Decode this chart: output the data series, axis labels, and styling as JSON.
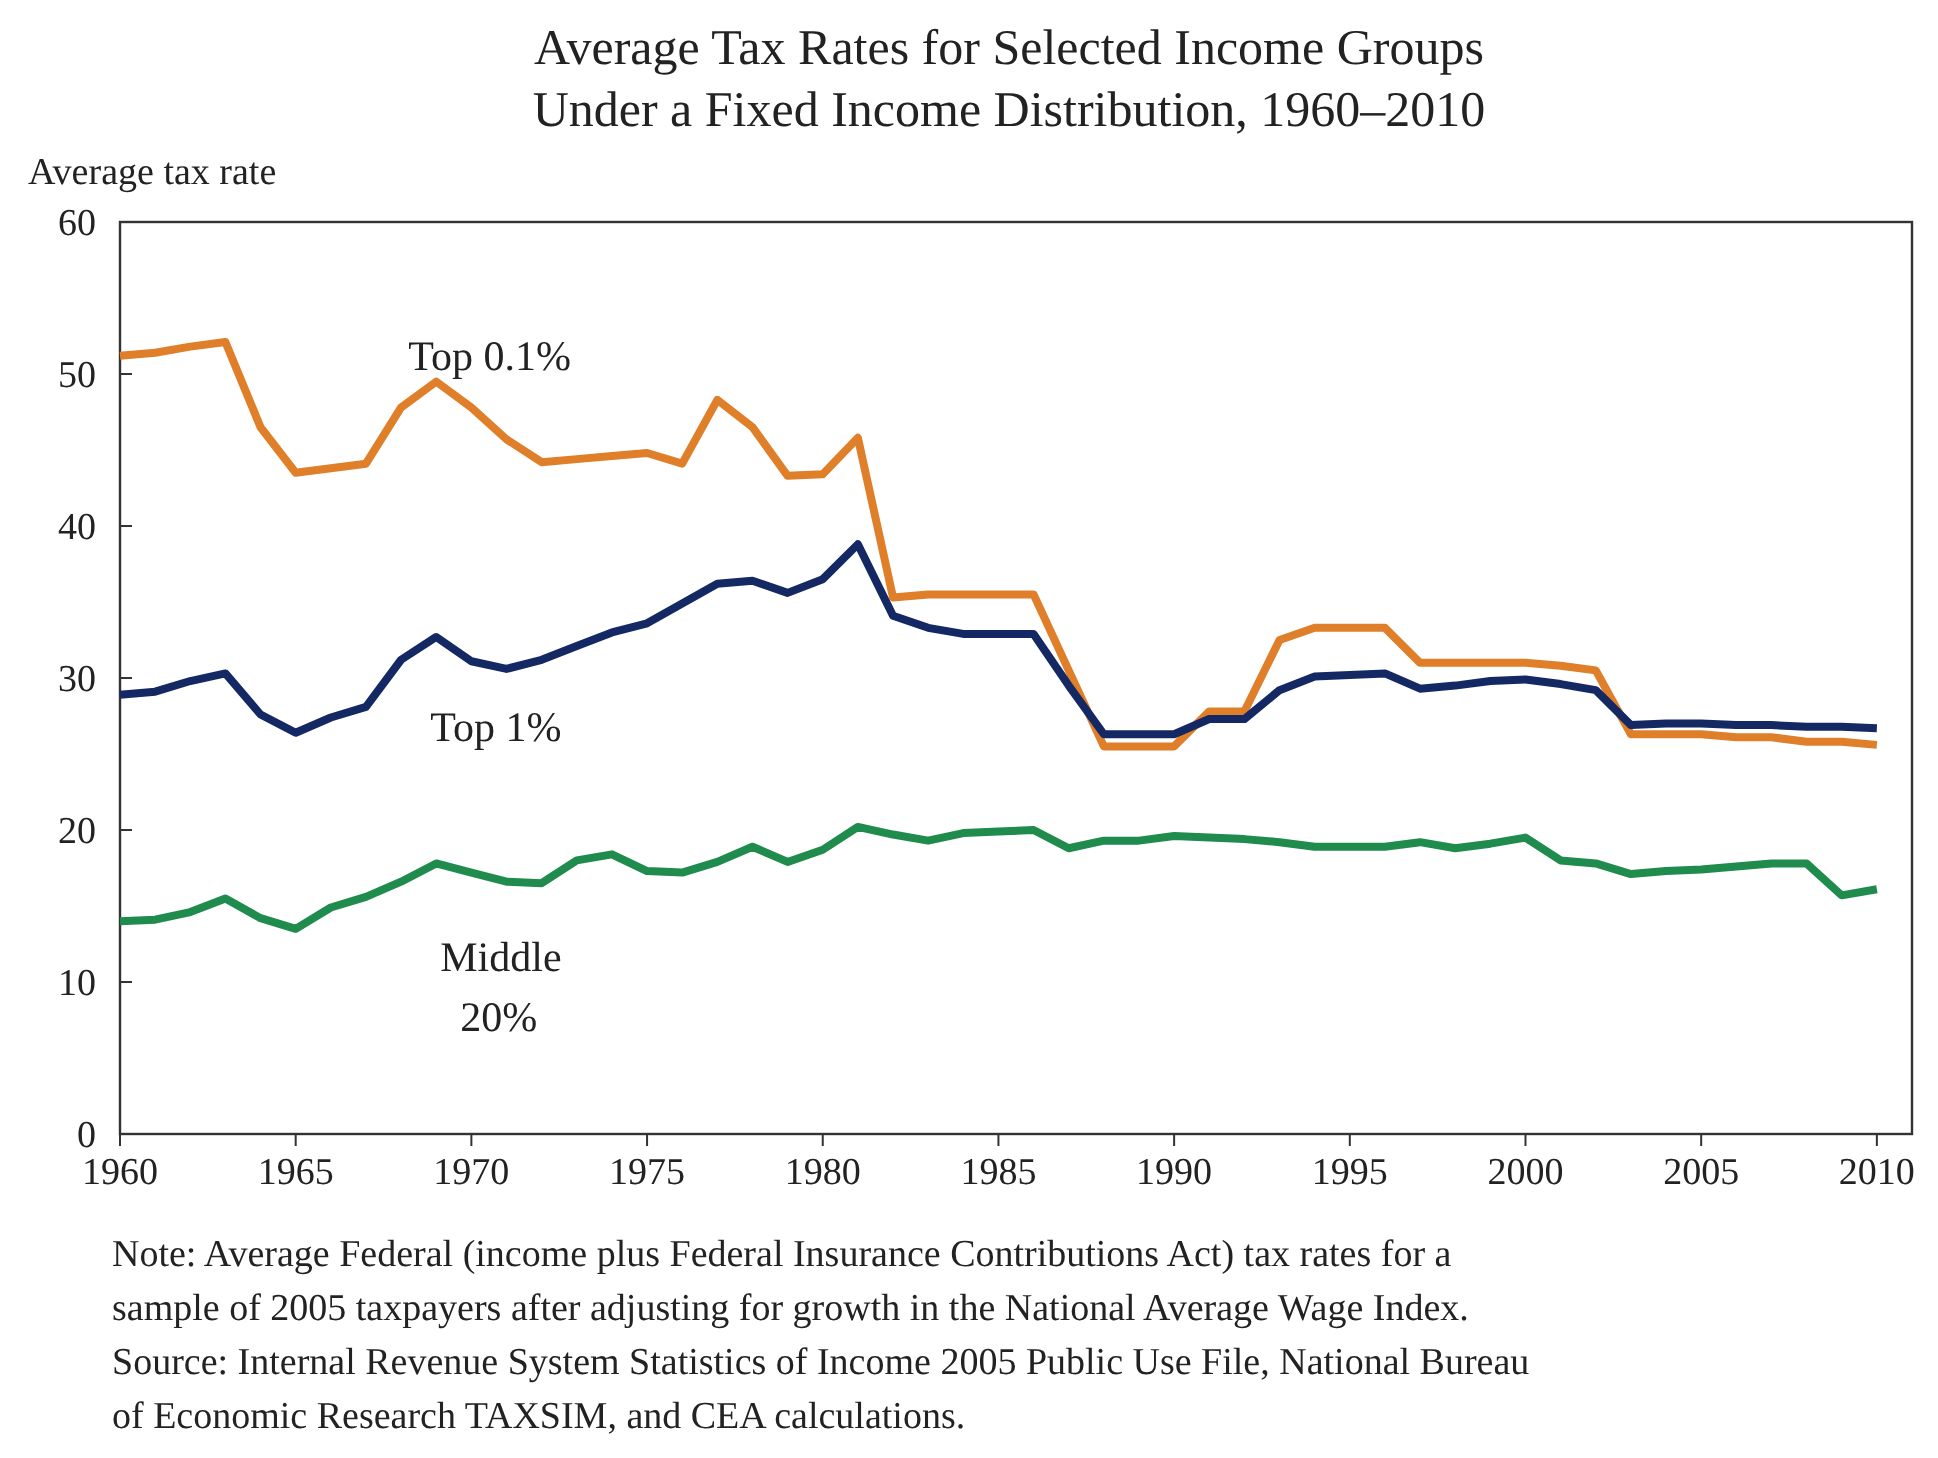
{
  "chart_data": {
    "type": "line",
    "title": "Average Tax Rates for Selected Income Groups\nUnder a Fixed Income Distribution, 1960–2010",
    "ylabel": "Average tax rate",
    "x": [
      1960,
      1961,
      1962,
      1963,
      1964,
      1965,
      1966,
      1967,
      1968,
      1969,
      1970,
      1971,
      1972,
      1973,
      1974,
      1975,
      1976,
      1977,
      1978,
      1979,
      1980,
      1981,
      1982,
      1983,
      1984,
      1985,
      1986,
      1987,
      1988,
      1989,
      1990,
      1991,
      1992,
      1993,
      1994,
      1995,
      1996,
      1997,
      1998,
      1999,
      2000,
      2001,
      2002,
      2003,
      2004,
      2005,
      2006,
      2007,
      2008,
      2009,
      2010
    ],
    "series": [
      {
        "name": "Top 0.1%",
        "color": "#e07f2a",
        "values": [
          51.2,
          51.4,
          51.8,
          52.1,
          46.5,
          43.5,
          43.8,
          44.1,
          47.8,
          49.5,
          47.8,
          45.7,
          44.2,
          44.4,
          44.6,
          44.8,
          44.1,
          48.3,
          46.5,
          43.3,
          43.4,
          45.8,
          35.3,
          35.5,
          35.5,
          35.5,
          35.5,
          30.5,
          25.5,
          25.5,
          25.5,
          27.8,
          27.8,
          32.5,
          33.3,
          33.3,
          33.3,
          31.0,
          31.0,
          31.0,
          31.0,
          30.8,
          30.5,
          26.3,
          26.3,
          26.3,
          26.1,
          26.1,
          25.8,
          25.8,
          25.6
        ]
      },
      {
        "name": "Top 1%",
        "color": "#142864",
        "values": [
          28.9,
          29.1,
          29.8,
          30.3,
          27.6,
          26.4,
          27.4,
          28.1,
          31.2,
          32.7,
          31.1,
          30.6,
          31.2,
          32.1,
          33.0,
          33.6,
          34.9,
          36.2,
          36.4,
          35.6,
          36.5,
          38.8,
          34.1,
          33.3,
          32.9,
          32.9,
          32.9,
          29.5,
          26.3,
          26.3,
          26.3,
          27.3,
          27.3,
          29.2,
          30.1,
          30.2,
          30.3,
          29.3,
          29.5,
          29.8,
          29.9,
          29.6,
          29.2,
          26.9,
          27.0,
          27.0,
          26.9,
          26.9,
          26.8,
          26.8,
          26.7
        ]
      },
      {
        "name": "Middle 20%",
        "color": "#1f8b4c",
        "values": [
          14.0,
          14.1,
          14.6,
          15.5,
          14.2,
          13.5,
          14.9,
          15.6,
          16.6,
          17.8,
          17.2,
          16.6,
          16.5,
          18.0,
          18.4,
          17.3,
          17.2,
          17.9,
          18.9,
          17.9,
          18.7,
          20.2,
          19.7,
          19.3,
          19.8,
          19.9,
          20.0,
          18.8,
          19.3,
          19.3,
          19.6,
          19.5,
          19.4,
          19.2,
          18.9,
          18.9,
          18.9,
          19.2,
          18.8,
          19.1,
          19.5,
          18.0,
          17.8,
          17.1,
          17.3,
          17.4,
          17.6,
          17.8,
          17.8,
          15.7,
          16.1
        ]
      }
    ],
    "xlim": [
      1960,
      2011
    ],
    "xticks": [
      1960,
      1965,
      1970,
      1975,
      1980,
      1985,
      1990,
      1995,
      2000,
      2005,
      2010
    ],
    "ylim": [
      0,
      60
    ],
    "yticks": [
      0,
      10,
      20,
      30,
      40,
      50,
      60
    ],
    "grid": false,
    "legend": false,
    "marker": "none",
    "line_style": "solid",
    "annotations": [
      "Note: Average Federal (income plus Federal Insurance Contributions Act) tax rates for a sample of 2005 taxpayers after adjusting for growth in the National Average Wage Index.",
      "Source: Internal Revenue System Statistics of Income 2005 Public Use File, National Bureau of Economic Research TAXSIM, and CEA calculations."
    ]
  }
}
